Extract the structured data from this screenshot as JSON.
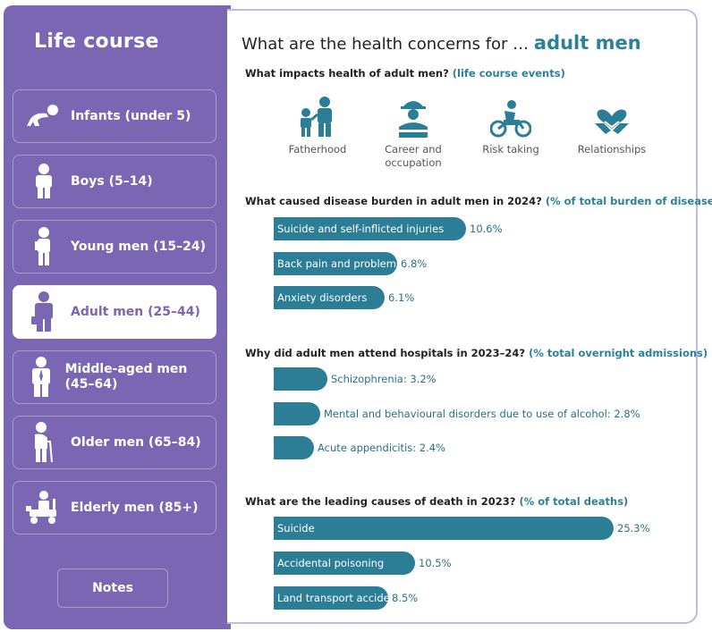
{
  "sidebar": {
    "title": "Life course",
    "items": [
      {
        "label": "Infants (under 5)",
        "icon": "crawling-baby-icon"
      },
      {
        "label": "Boys (5–14)",
        "icon": "boy-icon"
      },
      {
        "label": "Young men (15–24)",
        "icon": "young-man-icon"
      },
      {
        "label": "Adult men (25–44)",
        "icon": "adult-man-icon",
        "active": true
      },
      {
        "label": "Middle-aged men (45–64)",
        "icon": "businessman-icon"
      },
      {
        "label": "Older men (65–84)",
        "icon": "older-man-cane-icon"
      },
      {
        "label": "Elderly men (85+)",
        "icon": "mobility-scooter-icon"
      }
    ],
    "notes_label": "Notes"
  },
  "main": {
    "title_prefix": "What are the health concerns for …",
    "title_highlight": "adult men",
    "events": {
      "question": "What impacts health of adult men?",
      "question_sub": "(life course events)",
      "items": [
        {
          "label": "Fatherhood",
          "icon": "father-child-icon"
        },
        {
          "label": "Career and occupation",
          "icon": "worker-helmet-icon"
        },
        {
          "label": "Risk taking",
          "icon": "motorbike-rider-icon"
        },
        {
          "label": "Relationships",
          "icon": "handshake-heart-icon"
        }
      ]
    },
    "burden": {
      "question": "What caused disease burden in adult men in 2024?",
      "question_sub": "(% of total burden of disease)",
      "bars": [
        {
          "label": "Suicide and self-inflicted injuries",
          "value": 10.6,
          "value_label": "10.6%"
        },
        {
          "label": "Back pain and problems",
          "value": 6.8,
          "value_label": "6.8%"
        },
        {
          "label": "Anxiety disorders",
          "value": 6.1,
          "value_label": "6.1%"
        }
      ]
    },
    "hospital": {
      "question": "Why did adult men attend hospitals in 2023–24?",
      "question_sub": "(% total overnight admissions)",
      "bars": [
        {
          "label": "Schizophrenia: 3.2%",
          "value": 3.2
        },
        {
          "label": "Mental and behavioural disorders due to use of alcohol: 2.8%",
          "value": 2.8
        },
        {
          "label": "Acute appendicitis: 2.4%",
          "value": 2.4
        }
      ]
    },
    "deaths": {
      "question": "What are the leading causes of death in 2023?",
      "question_sub": "(% of total deaths)",
      "bars": [
        {
          "label": "Suicide",
          "value": 25.3,
          "value_label": "25.3%"
        },
        {
          "label": "Accidental poisoning",
          "value": 10.5,
          "value_label": "10.5%"
        },
        {
          "label": "Land transport accident",
          "value": 8.5,
          "value_label": "8.5%"
        }
      ]
    },
    "accent_color": "#2c7e96",
    "sidebar_color": "#7b66b3"
  }
}
